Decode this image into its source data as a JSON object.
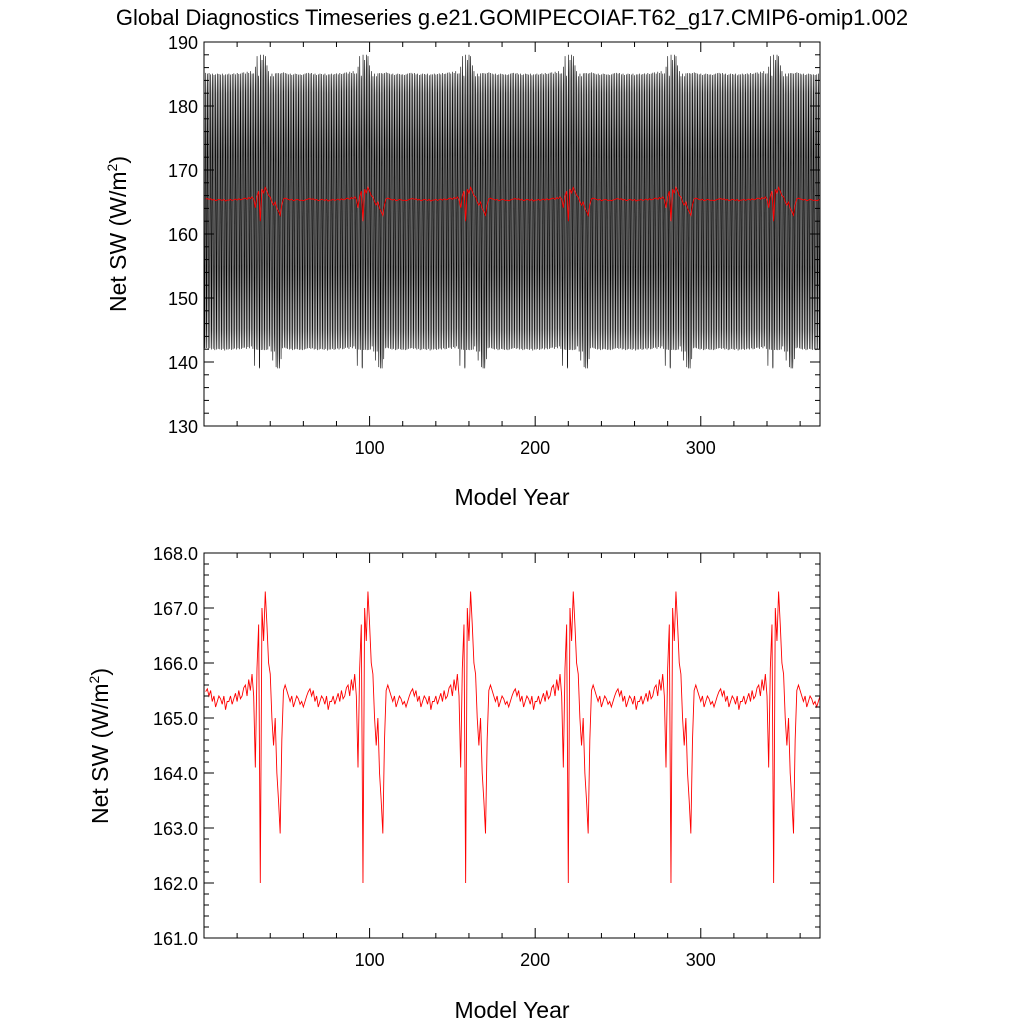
{
  "title": "Global Diagnostics Timeseries g.e21.GOMIPECOIAF.T62_g17.CMIP6-omip1.002",
  "chart_data": [
    {
      "type": "line",
      "xlabel": "Model Year",
      "ylabel": "Net SW (W/m",
      "ylabel_sup": "2",
      "ylabel_close": ")",
      "xlim": [
        0,
        372
      ],
      "ylim": [
        130,
        190
      ],
      "xticks": [
        100,
        200,
        300
      ],
      "xtick_labels": [
        "100",
        "200",
        "300"
      ],
      "yticks": [
        130,
        140,
        150,
        160,
        170,
        180,
        190
      ],
      "ytick_labels": [
        "130",
        "140",
        "150",
        "160",
        "170",
        "180",
        "190"
      ],
      "grid": false,
      "series": [
        {
          "color": "#000000",
          "kind": "monthly-seasonal-cycle",
          "cycle_min_approx": 142,
          "cycle_max_approx": 185,
          "envelope_range_approx": [
            139,
            188
          ]
        },
        {
          "color": "#ff0000",
          "kind": "annual-mean",
          "ref": "annual_mean"
        }
      ]
    },
    {
      "type": "line",
      "xlabel": "Model Year",
      "ylabel": "Net SW (W/m",
      "ylabel_sup": "2",
      "ylabel_close": ")",
      "xlim": [
        0,
        372
      ],
      "ylim": [
        161.0,
        168.0
      ],
      "xticks": [
        100,
        200,
        300
      ],
      "xtick_labels": [
        "100",
        "200",
        "300"
      ],
      "yticks": [
        161,
        162,
        163,
        164,
        165,
        166,
        167,
        168
      ],
      "ytick_labels": [
        "161.0",
        "162.0",
        "163.0",
        "164.0",
        "165.0",
        "166.0",
        "167.0",
        "168.0"
      ],
      "grid": false,
      "series": [
        {
          "color": "#ff0000",
          "kind": "annual-mean",
          "ref": "annual_mean"
        }
      ]
    }
  ],
  "annual_mean": {
    "cycle_length_years": 62,
    "n_cycles": 6,
    "cycle_years": [
      1,
      2,
      3,
      4,
      5,
      6,
      7,
      8,
      9,
      10,
      11,
      12,
      13,
      14,
      15,
      16,
      17,
      18,
      19,
      20,
      21,
      22,
      23,
      24,
      25,
      26,
      27,
      28,
      29,
      30,
      31,
      32,
      33,
      34,
      35,
      36,
      37,
      38,
      39,
      40,
      41,
      42,
      43,
      44,
      45,
      46,
      47,
      48,
      49,
      50,
      51,
      52,
      53,
      54,
      55,
      56,
      57,
      58,
      59,
      60,
      61,
      62
    ],
    "cycle_values": [
      165.48,
      165.53,
      165.4,
      165.5,
      165.3,
      165.4,
      165.2,
      165.3,
      165.4,
      165.35,
      165.25,
      165.4,
      165.15,
      165.3,
      165.3,
      165.4,
      165.25,
      165.35,
      165.45,
      165.3,
      165.5,
      165.35,
      165.4,
      165.55,
      165.6,
      165.4,
      165.7,
      165.5,
      165.8,
      165.4,
      164.1,
      165.9,
      166.7,
      162.0,
      167.0,
      166.4,
      167.3,
      166.7,
      166.0,
      165.8,
      165.0,
      164.5,
      165.0,
      164.0,
      163.5,
      162.9,
      164.6,
      165.5,
      165.6,
      165.5,
      165.4,
      165.3,
      165.4,
      165.2,
      165.3,
      165.4,
      165.35,
      165.25,
      165.3,
      165.2,
      165.3,
      165.4
    ]
  }
}
